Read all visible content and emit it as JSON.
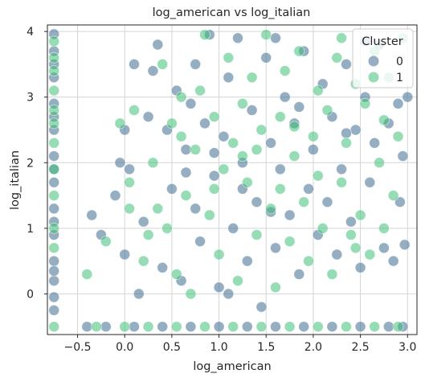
{
  "chart_data": {
    "type": "scatter",
    "title": "log_american vs log_italian",
    "xlabel": "log_american",
    "ylabel": "log_italian",
    "xlim": [
      -0.82,
      3.1
    ],
    "ylim": [
      -0.62,
      4.1
    ],
    "x_ticks": [
      -0.5,
      0.0,
      0.5,
      1.0,
      1.5,
      2.0,
      2.5,
      3.0
    ],
    "x_tick_labels": [
      "−0.5",
      "0.0",
      "0.5",
      "1.0",
      "1.5",
      "2.0",
      "2.5",
      "3.0"
    ],
    "y_ticks": [
      0,
      1,
      2,
      3,
      4
    ],
    "y_tick_labels": [
      "0",
      "1",
      "2",
      "3",
      "4"
    ],
    "grid": true,
    "legend": {
      "title": "Cluster",
      "placement": "top-right",
      "entries": [
        {
          "label": "0",
          "color": "#3e6b8f"
        },
        {
          "label": "1",
          "color": "#3fbf78"
        }
      ]
    },
    "series": [
      {
        "name": "0",
        "color": "#3e6b8f",
        "points": [
          [
            -0.75,
            3.96
          ],
          [
            -0.75,
            3.7
          ],
          [
            -0.75,
            3.3
          ],
          [
            -0.75,
            2.9
          ],
          [
            -0.75,
            2.5
          ],
          [
            -0.75,
            2.1
          ],
          [
            -0.75,
            1.7
          ],
          [
            -0.75,
            1.3
          ],
          [
            -0.75,
            0.9
          ],
          [
            -0.75,
            0.5
          ],
          [
            -0.75,
            0.2
          ],
          [
            -0.75,
            -0.25
          ],
          [
            -0.75,
            3.5
          ],
          [
            -0.75,
            2.7
          ],
          [
            -0.75,
            1.9
          ],
          [
            -0.75,
            1.1
          ],
          [
            -0.75,
            0.35
          ],
          [
            -0.75,
            -0.05
          ],
          [
            -0.4,
            -0.5
          ],
          [
            -0.2,
            -0.5
          ],
          [
            0.1,
            -0.5
          ],
          [
            0.4,
            -0.5
          ],
          [
            0.7,
            -0.5
          ],
          [
            1.0,
            -0.5
          ],
          [
            1.3,
            -0.5
          ],
          [
            1.6,
            -0.5
          ],
          [
            1.9,
            -0.5
          ],
          [
            2.2,
            -0.5
          ],
          [
            2.5,
            -0.5
          ],
          [
            2.8,
            -0.5
          ],
          [
            2.95,
            -0.5
          ],
          [
            -0.35,
            1.2
          ],
          [
            -0.25,
            0.9
          ],
          [
            -0.1,
            1.5
          ],
          [
            0.0,
            0.6
          ],
          [
            0.05,
            1.9
          ],
          [
            0.1,
            3.5
          ],
          [
            0.2,
            1.1
          ],
          [
            0.3,
            3.4
          ],
          [
            0.35,
            3.8
          ],
          [
            0.4,
            0.4
          ],
          [
            0.45,
            2.5
          ],
          [
            0.5,
            1.6
          ],
          [
            0.55,
            3.1
          ],
          [
            0.6,
            0.2
          ],
          [
            0.65,
            2.2
          ],
          [
            0.7,
            2.9
          ],
          [
            0.75,
            1.3
          ],
          [
            0.8,
            0.8
          ],
          [
            0.85,
            2.6
          ],
          [
            0.9,
            3.95
          ],
          [
            0.95,
            1.8
          ],
          [
            1.0,
            0.1
          ],
          [
            1.05,
            2.4
          ],
          [
            1.1,
            3.3
          ],
          [
            1.15,
            1.0
          ],
          [
            1.2,
            3.9
          ],
          [
            1.25,
            2.0
          ],
          [
            1.3,
            0.5
          ],
          [
            1.35,
            2.8
          ],
          [
            1.4,
            1.4
          ],
          [
            1.45,
            -0.2
          ],
          [
            1.5,
            3.6
          ],
          [
            1.55,
            2.3
          ],
          [
            1.6,
            0.7
          ],
          [
            1.65,
            1.9
          ],
          [
            1.7,
            3.0
          ],
          [
            1.75,
            1.2
          ],
          [
            1.8,
            2.6
          ],
          [
            1.85,
            0.3
          ],
          [
            1.9,
            3.7
          ],
          [
            1.95,
            1.6
          ],
          [
            2.0,
            2.2
          ],
          [
            2.05,
            0.9
          ],
          [
            2.1,
            3.2
          ],
          [
            2.15,
            1.4
          ],
          [
            2.2,
            2.7
          ],
          [
            2.25,
            0.6
          ],
          [
            2.3,
            1.9
          ],
          [
            2.35,
            3.5
          ],
          [
            2.4,
            1.1
          ],
          [
            2.45,
            2.5
          ],
          [
            2.5,
            0.4
          ],
          [
            2.55,
            3.0
          ],
          [
            2.6,
            1.7
          ],
          [
            2.65,
            2.3
          ],
          [
            2.7,
            3.8
          ],
          [
            2.75,
            0.7
          ],
          [
            2.8,
            2.6
          ],
          [
            2.85,
            0.5
          ],
          [
            2.9,
            2.9
          ],
          [
            2.92,
            1.4
          ],
          [
            2.95,
            2.1
          ],
          [
            3.0,
            3.0
          ],
          [
            2.97,
            0.75
          ],
          [
            0.25,
            2.7
          ],
          [
            0.75,
            3.5
          ],
          [
            1.6,
            3.9
          ],
          [
            2.55,
            3.85
          ],
          [
            0.0,
            2.5
          ],
          [
            -0.05,
            2.0
          ],
          [
            0.15,
            0.0
          ],
          [
            1.1,
            0.0
          ],
          [
            1.85,
            2.85
          ],
          [
            2.35,
            2.45
          ],
          [
            0.95,
            2.15
          ],
          [
            1.25,
            1.6
          ],
          [
            1.55,
            1.25
          ],
          [
            0.65,
            1.85
          ]
        ]
      },
      {
        "name": "1",
        "color": "#3fbf78",
        "points": [
          [
            -0.75,
            3.85
          ],
          [
            -0.75,
            3.6
          ],
          [
            -0.75,
            3.1
          ],
          [
            -0.75,
            2.8
          ],
          [
            -0.75,
            2.3
          ],
          [
            -0.75,
            1.9
          ],
          [
            -0.75,
            1.5
          ],
          [
            -0.75,
            1.0
          ],
          [
            -0.75,
            0.7
          ],
          [
            -0.75,
            -0.5
          ],
          [
            -0.75,
            2.6
          ],
          [
            -0.75,
            3.4
          ],
          [
            -0.3,
            -0.5
          ],
          [
            0.0,
            -0.5
          ],
          [
            0.25,
            -0.5
          ],
          [
            0.55,
            -0.5
          ],
          [
            0.85,
            -0.5
          ],
          [
            1.15,
            -0.5
          ],
          [
            1.45,
            -0.5
          ],
          [
            1.75,
            -0.5
          ],
          [
            2.05,
            -0.5
          ],
          [
            2.35,
            -0.5
          ],
          [
            2.65,
            -0.5
          ],
          [
            2.9,
            -0.5
          ],
          [
            -0.4,
            0.3
          ],
          [
            -0.2,
            0.8
          ],
          [
            -0.05,
            2.6
          ],
          [
            0.05,
            1.3
          ],
          [
            0.1,
            2.8
          ],
          [
            0.2,
            0.5
          ],
          [
            0.3,
            2.0
          ],
          [
            0.4,
            3.5
          ],
          [
            0.45,
            1.0
          ],
          [
            0.5,
            2.6
          ],
          [
            0.55,
            0.3
          ],
          [
            0.6,
            3.0
          ],
          [
            0.65,
            1.5
          ],
          [
            0.7,
            0.0
          ],
          [
            0.75,
            2.2
          ],
          [
            0.8,
            3.1
          ],
          [
            0.85,
            3.95
          ],
          [
            0.9,
            1.2
          ],
          [
            0.95,
            2.7
          ],
          [
            1.0,
            0.6
          ],
          [
            1.05,
            1.9
          ],
          [
            1.1,
            3.6
          ],
          [
            1.15,
            2.3
          ],
          [
            1.2,
            0.2
          ],
          [
            1.25,
            2.9
          ],
          [
            1.3,
            1.7
          ],
          [
            1.35,
            3.3
          ],
          [
            1.4,
            0.9
          ],
          [
            1.45,
            2.5
          ],
          [
            1.5,
            3.95
          ],
          [
            1.55,
            1.3
          ],
          [
            1.6,
            0.1
          ],
          [
            1.65,
            2.7
          ],
          [
            1.7,
            3.4
          ],
          [
            1.75,
            0.8
          ],
          [
            1.8,
            2.1
          ],
          [
            1.85,
            3.7
          ],
          [
            1.9,
            1.4
          ],
          [
            1.95,
            0.5
          ],
          [
            2.0,
            2.4
          ],
          [
            2.05,
            3.1
          ],
          [
            2.1,
            1.0
          ],
          [
            2.15,
            2.8
          ],
          [
            2.2,
            0.3
          ],
          [
            2.25,
            3.6
          ],
          [
            2.3,
            1.7
          ],
          [
            2.35,
            2.3
          ],
          [
            2.4,
            0.9
          ],
          [
            2.45,
            3.2
          ],
          [
            2.5,
            1.2
          ],
          [
            2.55,
            2.9
          ],
          [
            2.6,
            0.6
          ],
          [
            2.65,
            3.7
          ],
          [
            2.7,
            2.0
          ],
          [
            2.75,
            1.0
          ],
          [
            2.8,
            3.3
          ],
          [
            2.85,
            1.5
          ],
          [
            2.9,
            2.4
          ],
          [
            2.95,
            3.9
          ],
          [
            2.3,
            3.9
          ],
          [
            0.05,
            1.7
          ],
          [
            0.35,
            1.3
          ],
          [
            0.95,
            1.6
          ],
          [
            1.25,
            2.1
          ],
          [
            1.65,
            1.6
          ],
          [
            2.05,
            1.8
          ],
          [
            0.6,
            2.4
          ],
          [
            1.4,
            2.2
          ],
          [
            1.8,
            2.55
          ],
          [
            0.25,
            0.9
          ],
          [
            2.45,
            0.7
          ],
          [
            2.75,
            2.65
          ]
        ]
      }
    ]
  }
}
